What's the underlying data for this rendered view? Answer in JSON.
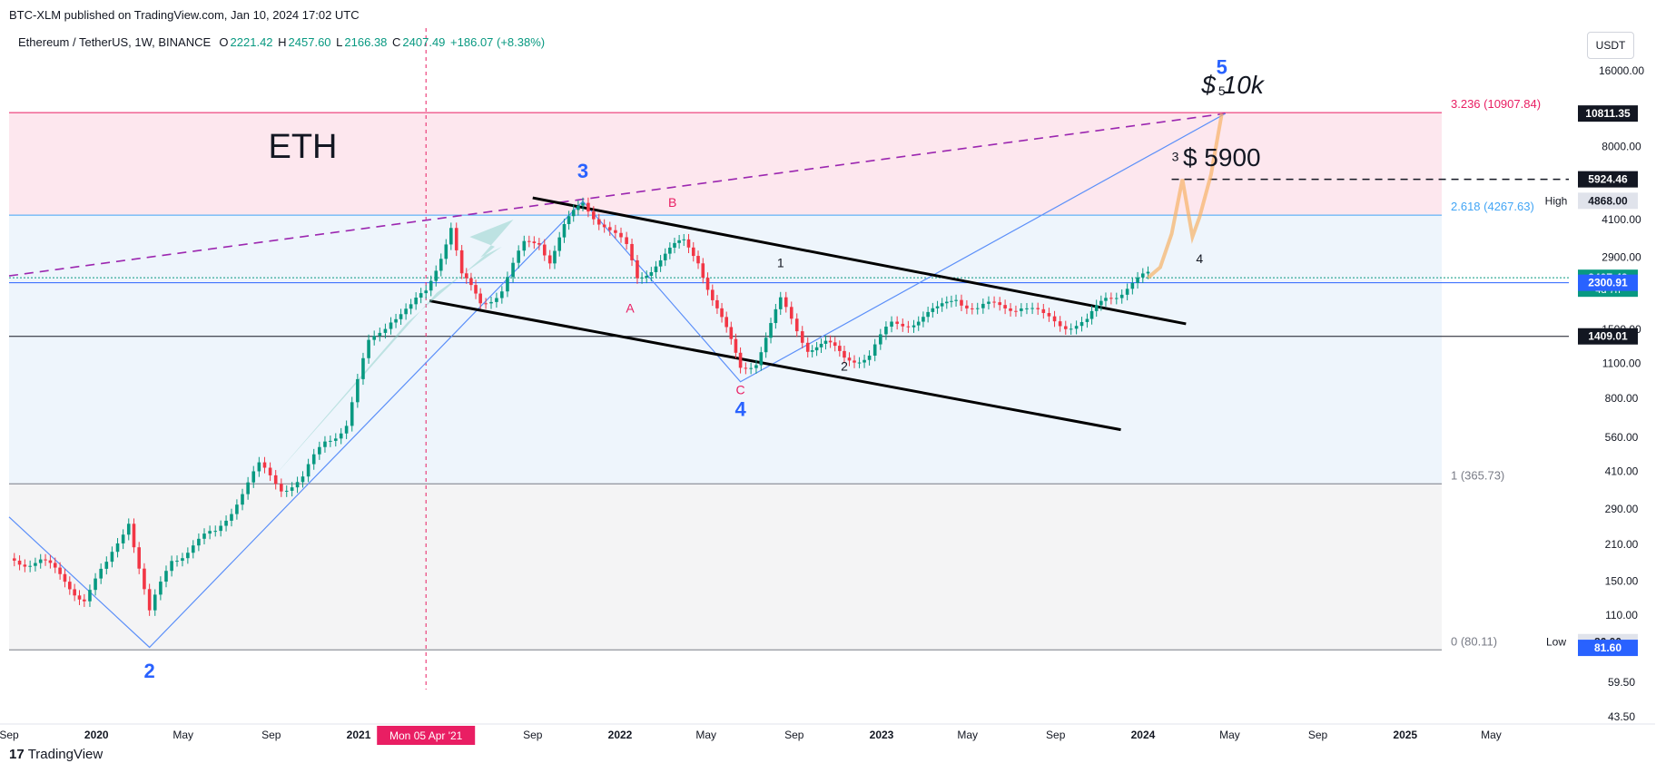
{
  "attribution": "BTC-XLM published on TradingView.com, Jan 10, 2024 17:02 UTC",
  "footer_logo": "TradingView",
  "currency_button": "USDT",
  "header": {
    "symbol": "Ethereum / TetherUS, 1W, BINANCE",
    "o_label": "O",
    "o": "2221.42",
    "h_label": "H",
    "h": "2457.60",
    "l_label": "L",
    "l": "2166.38",
    "c_label": "C",
    "c": "2407.49",
    "change": "+186.07 (+8.38%)"
  },
  "colors": {
    "up": "#089981",
    "down": "#f23645",
    "trendline": "#5b8ff9",
    "fib_red": "#e91e63",
    "fib_blue": "#42a5f5",
    "wave_blue": "#2962ff",
    "dashed_purple": "#9c27b0",
    "projection": "#f7b267",
    "arrow": "#80cbc4"
  },
  "chart_data": {
    "type": "candlestick",
    "scale": "log",
    "ylim": [
      40,
      20000
    ],
    "x_start": "2019-09-01",
    "x_end": "2025-06-01",
    "title": "ETH",
    "y_ticks": [
      "16000.00",
      "8000.00",
      "4100.00",
      "2900.00",
      "1500.00",
      "1100.00",
      "800.00",
      "560.00",
      "410.00",
      "290.00",
      "210.00",
      "150.00",
      "110.00",
      "59.50",
      "43.50"
    ],
    "x_ticks": [
      {
        "label": "Sep",
        "date": "2019-09-01"
      },
      {
        "label": "2020",
        "date": "2020-01-01",
        "bold": true
      },
      {
        "label": "May",
        "date": "2020-05-01"
      },
      {
        "label": "Sep",
        "date": "2020-09-01"
      },
      {
        "label": "2021",
        "date": "2021-01-01",
        "bold": true
      },
      {
        "label": "Sep",
        "date": "2021-09-01"
      },
      {
        "label": "2022",
        "date": "2022-01-01",
        "bold": true
      },
      {
        "label": "May",
        "date": "2022-05-01"
      },
      {
        "label": "Sep",
        "date": "2022-09-01"
      },
      {
        "label": "2023",
        "date": "2023-01-01",
        "bold": true
      },
      {
        "label": "May",
        "date": "2023-05-01"
      },
      {
        "label": "Sep",
        "date": "2023-09-01"
      },
      {
        "label": "2024",
        "date": "2024-01-01",
        "bold": true
      },
      {
        "label": "May",
        "date": "2024-05-01"
      },
      {
        "label": "Sep",
        "date": "2024-09-01"
      },
      {
        "label": "2025",
        "date": "2025-01-01",
        "bold": true
      },
      {
        "label": "May",
        "date": "2025-05-01"
      }
    ],
    "crosshair": {
      "date": "2021-04-05",
      "label": "Mon 05 Apr '21"
    },
    "price_path": [
      [
        "2019-09-01",
        185
      ],
      [
        "2019-10-15",
        180
      ],
      [
        "2019-12-15",
        130
      ],
      [
        "2020-01-15",
        170
      ],
      [
        "2020-02-15",
        270
      ],
      [
        "2020-03-15",
        110
      ],
      [
        "2020-04-15",
        185
      ],
      [
        "2020-05-15",
        210
      ],
      [
        "2020-06-15",
        230
      ],
      [
        "2020-07-15",
        320
      ],
      [
        "2020-08-15",
        420
      ],
      [
        "2020-09-15",
        360
      ],
      [
        "2020-10-15",
        380
      ],
      [
        "2020-11-15",
        540
      ],
      [
        "2020-12-15",
        640
      ],
      [
        "2021-01-15",
        1300
      ],
      [
        "2021-02-15",
        1700
      ],
      [
        "2021-03-15",
        1800
      ],
      [
        "2021-04-05",
        2100
      ],
      [
        "2021-05-10",
        3900
      ],
      [
        "2021-05-25",
        2400
      ],
      [
        "2021-06-20",
        1900
      ],
      [
        "2021-07-20",
        2200
      ],
      [
        "2021-08-20",
        3200
      ],
      [
        "2021-09-10",
        3400
      ],
      [
        "2021-09-25",
        2900
      ],
      [
        "2021-10-15",
        3800
      ],
      [
        "2021-11-10",
        4700
      ],
      [
        "2021-12-10",
        4000
      ],
      [
        "2022-01-10",
        3100
      ],
      [
        "2022-01-25",
        2400
      ],
      [
        "2022-02-20",
        2800
      ],
      [
        "2022-03-31",
        3300
      ],
      [
        "2022-04-20",
        2900
      ],
      [
        "2022-05-10",
        2000
      ],
      [
        "2022-06-18",
        1050
      ],
      [
        "2022-07-10",
        1150
      ],
      [
        "2022-08-13",
        1900
      ],
      [
        "2022-09-20",
        1300
      ],
      [
        "2022-10-15",
        1300
      ],
      [
        "2022-11-10",
        1150
      ],
      [
        "2022-12-15",
        1200
      ],
      [
        "2023-01-15",
        1550
      ],
      [
        "2023-02-15",
        1650
      ],
      [
        "2023-03-20",
        1750
      ],
      [
        "2023-04-15",
        2050
      ],
      [
        "2023-05-15",
        1800
      ],
      [
        "2023-06-15",
        1850
      ],
      [
        "2023-07-15",
        1900
      ],
      [
        "2023-08-15",
        1650
      ],
      [
        "2023-09-15",
        1600
      ],
      [
        "2023-10-15",
        1580
      ],
      [
        "2023-11-10",
        2000
      ],
      [
        "2023-12-10",
        2250
      ],
      [
        "2024-01-08",
        2407.49
      ]
    ],
    "projection_path": [
      [
        "2024-01-08",
        2407
      ],
      [
        "2024-01-25",
        2650
      ],
      [
        "2024-02-10",
        3600
      ],
      [
        "2024-02-25",
        5924
      ],
      [
        "2024-03-10",
        3500
      ],
      [
        "2024-03-20",
        4200
      ],
      [
        "2024-04-05",
        6200
      ],
      [
        "2024-04-20",
        10811
      ]
    ],
    "channel_lines": [
      {
        "from": [
          "2021-09-01",
          5000
        ],
        "to": [
          "2024-03-01",
          1580
        ]
      },
      {
        "from": [
          "2021-04-10",
          1950
        ],
        "to": [
          "2023-12-01",
          600
        ]
      }
    ],
    "wave_trendline": [
      [
        "2019-09-01",
        270
      ],
      [
        "2020-03-15",
        82
      ],
      [
        "2021-11-10",
        4850
      ],
      [
        "2022-06-18",
        930
      ],
      [
        "2024-04-25",
        10811
      ]
    ],
    "dashed_trendline": {
      "from": [
        "2019-09-01",
        2450
      ],
      "to": [
        "2024-04-25",
        10811
      ]
    },
    "fib_levels": [
      {
        "price": 10907.84,
        "text": "3.236 (10907.84)",
        "color": "#e91e63"
      },
      {
        "price": 4267.63,
        "text": "2.618 (4267.63)",
        "color": "#42a5f5"
      },
      {
        "price": 365.73,
        "text": "1 (365.73)",
        "color": "#787b86"
      },
      {
        "price": 80.11,
        "text": "0 (80.11)",
        "color": "#787b86"
      }
    ],
    "horizontal_lines": [
      {
        "price": 1409.01,
        "color": "#131722"
      },
      {
        "price": 2407.49,
        "color": "#089981",
        "dotted": true
      },
      {
        "price": 2300.91,
        "color": "#2962ff"
      }
    ],
    "dashed_target": {
      "price": 5924.46,
      "from": "2024-02-10"
    },
    "annotations": [
      {
        "text": "ETH",
        "date": "2020-10-15",
        "price": 7200,
        "size": 38,
        "color": "#131722"
      },
      {
        "text": "$ 10k",
        "date": "2024-05-05",
        "price": 13000,
        "size": 28,
        "color": "#131722",
        "italic": true
      },
      {
        "text": "$ 5900",
        "date": "2024-04-20",
        "price": 6700,
        "size": 28,
        "color": "#131722"
      },
      {
        "text": "2",
        "date": "2020-03-15",
        "price": 62,
        "size": 22,
        "color": "#2962ff",
        "bold": true
      },
      {
        "text": "3",
        "date": "2021-11-10",
        "price": 6000,
        "size": 22,
        "color": "#2962ff",
        "bold": true
      },
      {
        "text": "4",
        "date": "2022-06-18",
        "price": 680,
        "size": 22,
        "color": "#2962ff",
        "bold": true
      },
      {
        "text": "5",
        "date": "2024-04-20",
        "price": 15500,
        "size": 22,
        "color": "#2962ff",
        "bold": true
      },
      {
        "text": "A",
        "date": "2022-01-15",
        "price": 1750,
        "size": 14,
        "color": "#e91e63"
      },
      {
        "text": "B",
        "date": "2022-03-15",
        "price": 4600,
        "size": 14,
        "color": "#e91e63"
      },
      {
        "text": "C",
        "date": "2022-06-18",
        "price": 830,
        "size": 14,
        "color": "#e91e63"
      },
      {
        "text": "1",
        "date": "2022-08-13",
        "price": 2650,
        "size": 14,
        "color": "#131722"
      },
      {
        "text": "2",
        "date": "2022-11-10",
        "price": 1030,
        "size": 14,
        "color": "#131722"
      },
      {
        "text": "3",
        "date": "2024-02-15",
        "price": 7000,
        "size": 14,
        "color": "#131722"
      },
      {
        "text": "4",
        "date": "2024-03-20",
        "price": 2750,
        "size": 14,
        "color": "#131722"
      },
      {
        "text": "5",
        "date": "2024-04-20",
        "price": 12800,
        "size": 14,
        "color": "#131722"
      }
    ],
    "price_labels": [
      {
        "text": "10811.35",
        "price": 10811.35,
        "bg": "#131722",
        "fg": "#ffffff"
      },
      {
        "text": "5924.46",
        "price": 5924.46,
        "bg": "#131722",
        "fg": "#ffffff"
      },
      {
        "text": "4868.00",
        "price": 4868,
        "bg": "#e0e3eb",
        "fg": "#131722",
        "tag": "High"
      },
      {
        "text": "2407.49",
        "price": 2407.49,
        "bg": "#089981",
        "fg": "#ffffff",
        "sub": "4d 7h"
      },
      {
        "text": "2300.91",
        "price": 2300.91,
        "bg": "#2962ff",
        "fg": "#ffffff"
      },
      {
        "text": "1409.01",
        "price": 1409.01,
        "bg": "#131722",
        "fg": "#ffffff"
      },
      {
        "text": "86.00",
        "price": 86,
        "bg": "#e0e3eb",
        "fg": "#131722",
        "tag": "Low"
      },
      {
        "text": "81.60",
        "price": 81.6,
        "bg": "#2962ff",
        "fg": "#ffffff"
      }
    ]
  }
}
